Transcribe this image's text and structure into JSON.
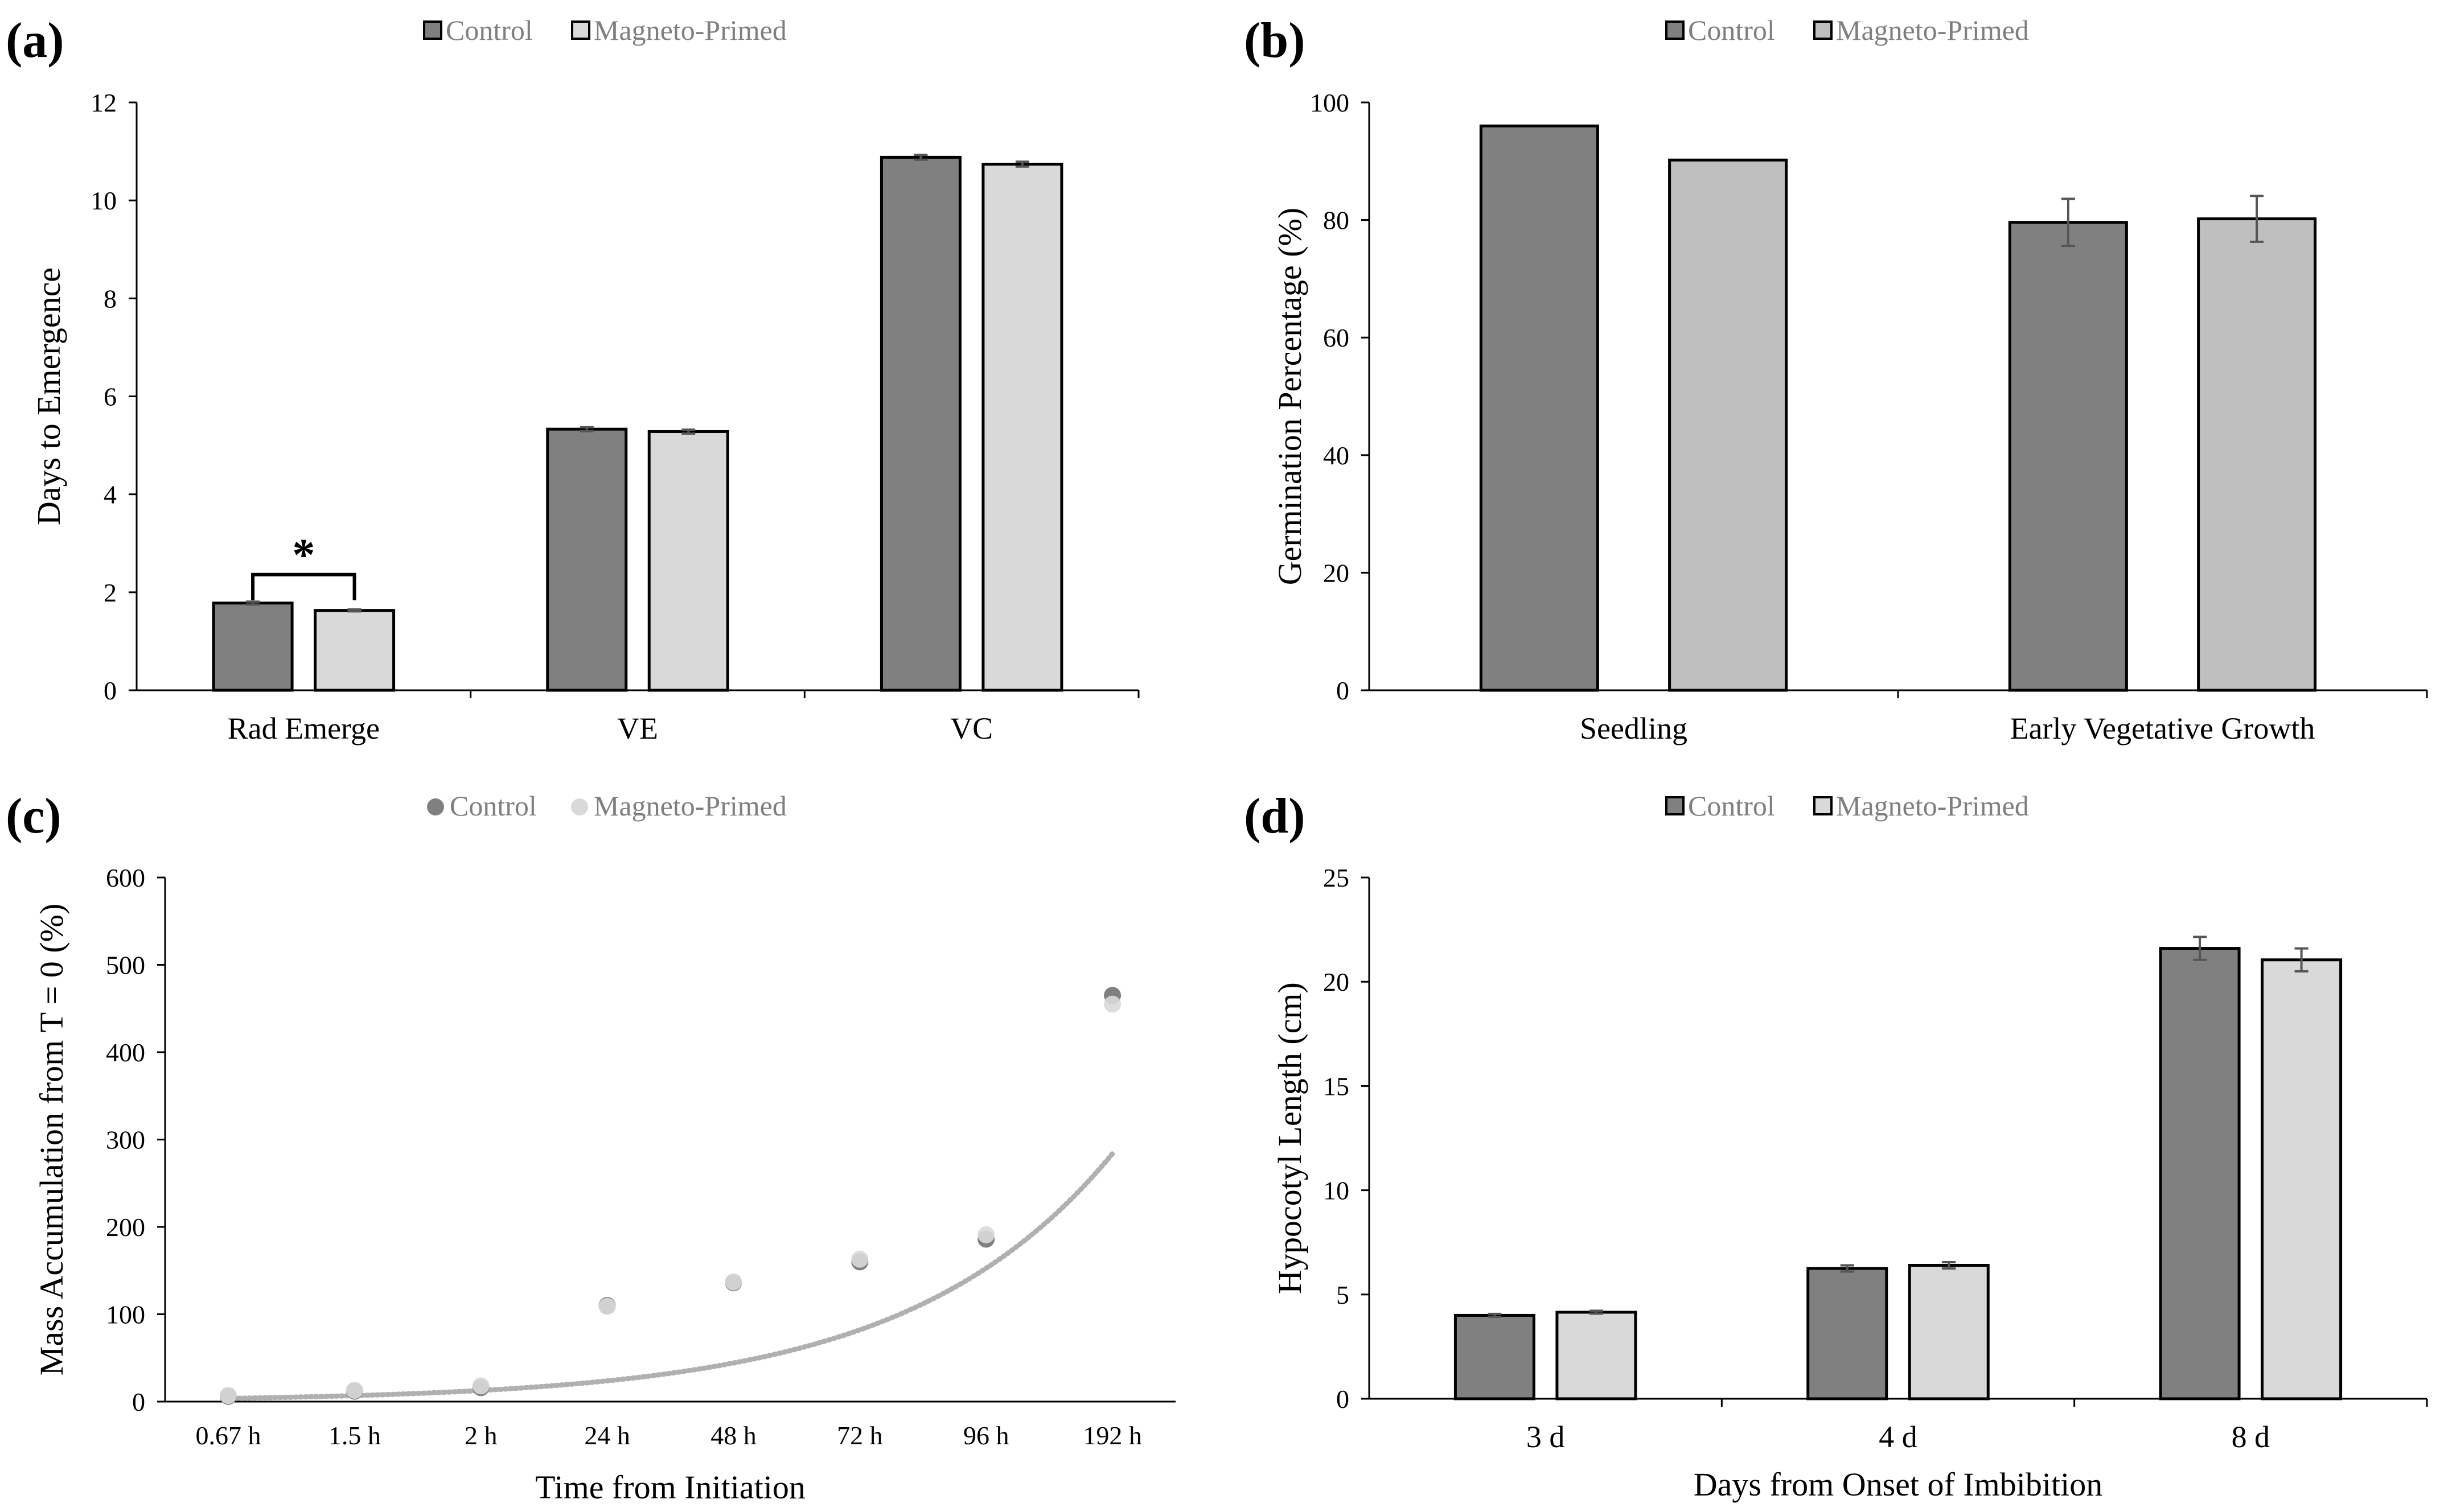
{
  "colors": {
    "control": "#808080",
    "magneto_light": "#d9d9d9",
    "magneto_b": "#bfbfbf",
    "axis": "#000000",
    "text": "#333333",
    "legend_text": "#7f7f7f"
  },
  "chart_data": [
    {
      "panel_label": "(a)",
      "type": "bar",
      "title": "",
      "xlabel": "",
      "ylabel": "Days to Emergence",
      "ylim": [
        0,
        12
      ],
      "yticks": [
        0,
        2,
        4,
        6,
        8,
        10,
        12
      ],
      "categories": [
        "Rad Emerge",
        "VE",
        "VC"
      ],
      "legend": {
        "placement": "top",
        "labels": [
          "Control",
          "Magneto-Primed"
        ]
      },
      "series": [
        {
          "name": "Control",
          "values": [
            1.78,
            5.33,
            10.88
          ],
          "errors": [
            0.03,
            0.04,
            0.05
          ]
        },
        {
          "name": "Magneto-Primed",
          "values": [
            1.63,
            5.28,
            10.74
          ],
          "errors": [
            0.02,
            0.04,
            0.05
          ]
        }
      ],
      "annotations": [
        {
          "text": "*",
          "category": "Rad Emerge"
        }
      ]
    },
    {
      "panel_label": "(b)",
      "type": "bar",
      "title": "",
      "xlabel": "",
      "ylabel": "Germination Percentage (%)",
      "ylim": [
        0,
        100
      ],
      "yticks": [
        0,
        20,
        40,
        60,
        80,
        100
      ],
      "categories": [
        "Seedling",
        "Early Vegetative Growth"
      ],
      "legend": {
        "placement": "top",
        "labels": [
          "Control",
          "Magneto-Primed"
        ]
      },
      "series": [
        {
          "name": "Control",
          "values": [
            96,
            79.6
          ],
          "errors": [
            0,
            4
          ]
        },
        {
          "name": "Magneto-Primed",
          "values": [
            90.2,
            80.2
          ],
          "errors": [
            0,
            3.9
          ]
        }
      ]
    },
    {
      "panel_label": "(c)",
      "type": "scatter",
      "title": "",
      "xlabel": "Time from Initiation",
      "ylabel": "Mass Accumulation from T = 0 (%)",
      "ylim": [
        0,
        600
      ],
      "yticks": [
        0,
        100,
        200,
        300,
        400,
        500,
        600
      ],
      "categories": [
        "0.67 h",
        "1.5 h",
        "2 h",
        "24 h",
        "48 h",
        "72 h",
        "96 h",
        "192 h"
      ],
      "legend": {
        "placement": "top",
        "labels": [
          "Control",
          "Magneto-Primed"
        ]
      },
      "series": [
        {
          "name": "Control",
          "values": [
            6,
            12,
            16,
            110,
            136,
            160,
            186,
            465
          ]
        },
        {
          "name": "Magneto-Primed",
          "values": [
            7,
            13,
            18,
            109,
            137,
            163,
            191,
            455
          ]
        }
      ],
      "trendline": {
        "type": "exponential",
        "a": 3.7,
        "b": 0.62,
        "style": "dotted"
      }
    },
    {
      "panel_label": "(d)",
      "type": "bar",
      "title": "",
      "xlabel": "Days from Onset of Imbibition",
      "ylabel": "Hypocotyl Length (cm)",
      "ylim": [
        0,
        25
      ],
      "yticks": [
        0,
        5,
        10,
        15,
        20,
        25
      ],
      "categories": [
        "3 d",
        "4 d",
        "8 d"
      ],
      "legend": {
        "placement": "top",
        "labels": [
          "Control",
          "Magneto-Primed"
        ]
      },
      "series": [
        {
          "name": "Control",
          "values": [
            4.0,
            6.25,
            21.6
          ],
          "errors": [
            0.07,
            0.15,
            0.55
          ]
        },
        {
          "name": "Magneto-Primed",
          "values": [
            4.15,
            6.4,
            21.05
          ],
          "errors": [
            0.07,
            0.15,
            0.55
          ]
        }
      ]
    }
  ]
}
